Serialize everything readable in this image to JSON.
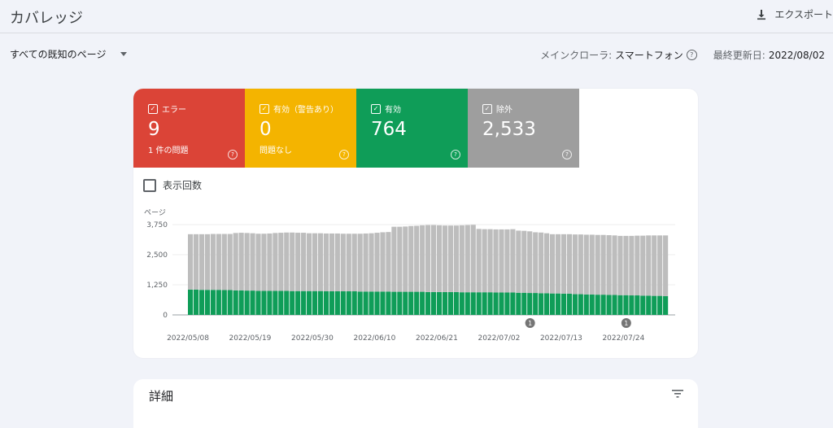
{
  "header": {
    "title": "カバレッジ",
    "export_label": "エクスポート"
  },
  "filter": {
    "selected": "すべての既知のページ"
  },
  "crawler": {
    "label": "メインクローラ:",
    "value": "スマートフォン",
    "updated_label": "最終更新日:",
    "updated_value": "2022/08/02"
  },
  "tiles": [
    {
      "label": "エラー",
      "value": "9",
      "sub": "1 件の問題",
      "color": "#db4437"
    },
    {
      "label": "有効（警告あり）",
      "value": "0",
      "sub": "問題なし",
      "color": "#f4b400"
    },
    {
      "label": "有効",
      "value": "764",
      "sub": "",
      "color": "#0f9d58"
    },
    {
      "label": "除外",
      "value": "2,533",
      "sub": "",
      "color": "#9e9e9e"
    }
  ],
  "impressions_label": "表示回数",
  "chart_data": {
    "type": "bar",
    "stacked": true,
    "ylabel": "ページ",
    "ylim": [
      0,
      3750
    ],
    "y_ticks": [
      "0",
      "1,250",
      "2,500",
      "3,750"
    ],
    "y_tick_values": [
      0,
      1250,
      2500,
      3750
    ],
    "x_tick_labels": [
      "2022/05/08",
      "2022/05/19",
      "2022/05/30",
      "2022/06/10",
      "2022/06/21",
      "2022/07/02",
      "2022/07/13",
      "2022/07/24"
    ],
    "x_tick_indices": [
      0,
      11,
      22,
      33,
      44,
      55,
      66,
      77
    ],
    "annotations": [
      {
        "label": "1",
        "index": 60
      },
      {
        "label": "1",
        "index": 77
      }
    ],
    "series": [
      {
        "color": "#0f9d58",
        "values": [
          1050,
          1050,
          1040,
          1040,
          1040,
          1040,
          1030,
          1030,
          1020,
          1020,
          1010,
          1010,
          1000,
          1000,
          1000,
          1000,
          1000,
          1000,
          990,
          990,
          990,
          990,
          990,
          990,
          980,
          980,
          980,
          980,
          980,
          980,
          970,
          970,
          970,
          970,
          970,
          970,
          960,
          960,
          960,
          960,
          960,
          960,
          950,
          950,
          950,
          950,
          950,
          950,
          940,
          940,
          940,
          940,
          940,
          940,
          930,
          930,
          930,
          930,
          920,
          920,
          910,
          910,
          900,
          900,
          890,
          890,
          880,
          880,
          860,
          860,
          850,
          850,
          840,
          840,
          830,
          830,
          820,
          820,
          810,
          810,
          800,
          800,
          790,
          790,
          780
        ]
      },
      {
        "color": "#bdbdbd",
        "values": [
          2300,
          2300,
          2310,
          2310,
          2320,
          2320,
          2330,
          2330,
          2380,
          2390,
          2390,
          2380,
          2370,
          2370,
          2380,
          2400,
          2410,
          2420,
          2430,
          2420,
          2420,
          2400,
          2400,
          2400,
          2400,
          2400,
          2400,
          2390,
          2390,
          2390,
          2400,
          2410,
          2420,
          2440,
          2460,
          2470,
          2700,
          2700,
          2710,
          2730,
          2740,
          2760,
          2780,
          2780,
          2770,
          2760,
          2760,
          2760,
          2780,
          2790,
          2800,
          2630,
          2620,
          2620,
          2620,
          2620,
          2620,
          2630,
          2580,
          2570,
          2560,
          2520,
          2520,
          2490,
          2460,
          2460,
          2470,
          2470,
          2480,
          2480,
          2480,
          2480,
          2480,
          2480,
          2480,
          2470,
          2460,
          2460,
          2470,
          2480,
          2490,
          2500,
          2510,
          2510,
          2520
        ]
      }
    ]
  }
}
